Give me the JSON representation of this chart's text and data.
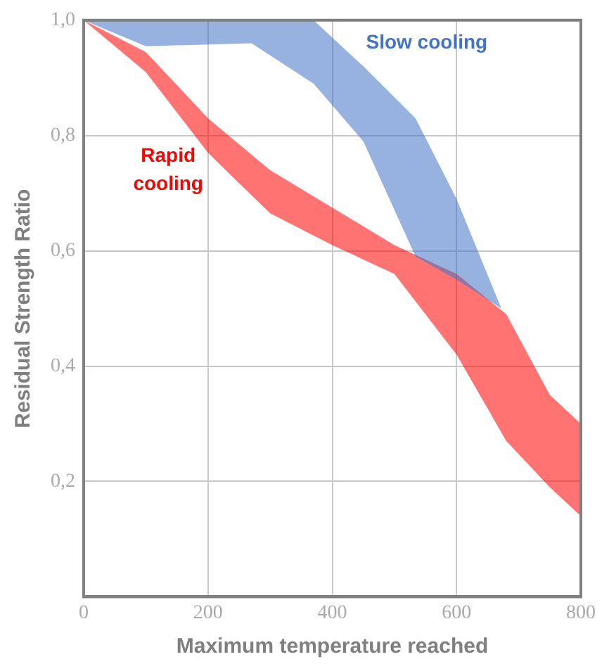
{
  "chart_data": {
    "type": "area",
    "xlabel": "Maximum temperature reached",
    "ylabel": "Residual Strength Ratio",
    "xlim": [
      0,
      800
    ],
    "xticks": [
      0,
      200,
      400,
      600,
      800
    ],
    "ylim": [
      0,
      1.0
    ],
    "yticks": [
      {
        "value": 0,
        "label": null
      },
      {
        "value": 0.2,
        "label": "0,2"
      },
      {
        "value": 0.4,
        "label": "0,4"
      },
      {
        "value": 0.6,
        "label": "0,6"
      },
      {
        "value": 0.8,
        "label": "0,8"
      },
      {
        "value": 1.0,
        "label": "1,0"
      }
    ],
    "grid": true,
    "legend": false,
    "series": [
      {
        "name": "Slow cooling",
        "color": "#4472c4",
        "x": [
          0,
          100,
          270,
          370,
          450,
          534,
          600,
          672
        ],
        "values": [
          null,
          null,
          null,
          null,
          null,
          null,
          null,
          null
        ],
        "lower": [
          1.0,
          0.955,
          0.96,
          0.89,
          0.79,
          0.59,
          0.55,
          0.5
        ],
        "upper": [
          1.0,
          1.0,
          1.0,
          1.0,
          0.92,
          0.83,
          0.69,
          0.5
        ]
      },
      {
        "name": "Rapid cooling",
        "color": "#ff0000",
        "x": [
          0,
          100,
          200,
          300,
          400,
          500,
          600,
          680,
          750,
          800
        ],
        "values": [
          null,
          null,
          null,
          null,
          null,
          null,
          null,
          null,
          null,
          null
        ],
        "lower": [
          1.0,
          0.91,
          0.77,
          0.665,
          0.61,
          0.56,
          0.42,
          0.27,
          0.19,
          0.14
        ],
        "upper": [
          1.0,
          0.945,
          0.83,
          0.74,
          0.675,
          0.61,
          0.56,
          0.49,
          0.35,
          0.3
        ]
      }
    ]
  }
}
